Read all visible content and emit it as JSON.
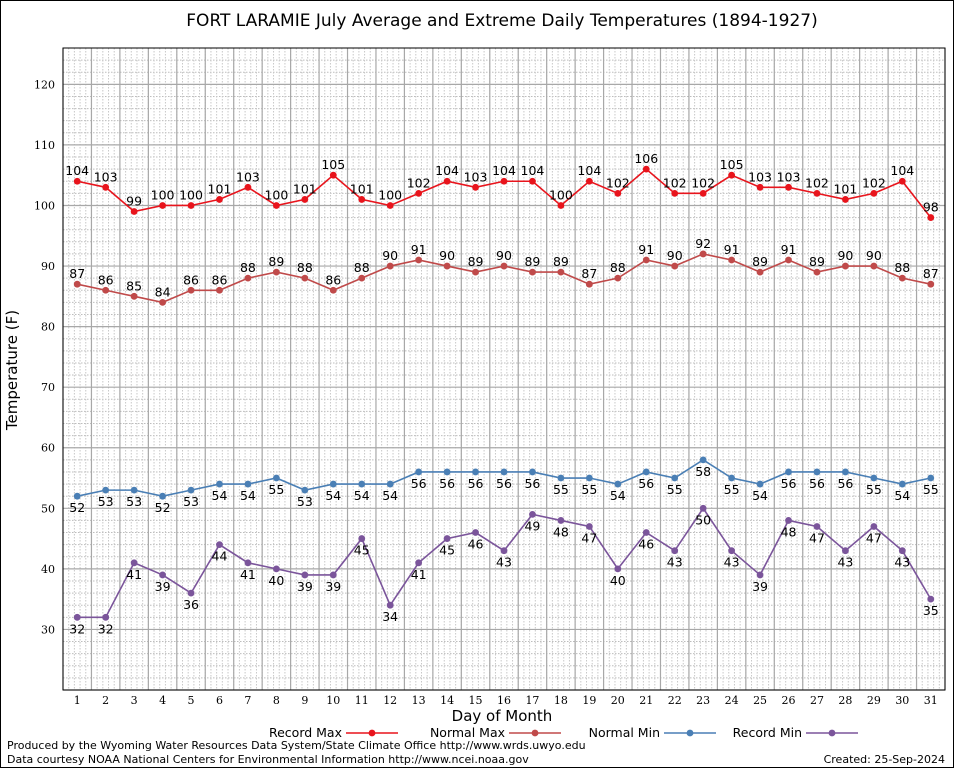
{
  "chart_data": {
    "type": "line",
    "title": "FORT LARAMIE July Average and Extreme Daily Temperatures (1894-1927)",
    "xlabel": "Day of Month",
    "ylabel": "Temperature (F)",
    "x": [
      1,
      2,
      3,
      4,
      5,
      6,
      7,
      8,
      9,
      10,
      11,
      12,
      13,
      14,
      15,
      16,
      17,
      18,
      19,
      20,
      21,
      22,
      23,
      24,
      25,
      26,
      27,
      28,
      29,
      30,
      31
    ],
    "xlim": [
      0.5,
      31.5
    ],
    "ylim": [
      20,
      126
    ],
    "yticks": [
      30,
      40,
      50,
      60,
      70,
      80,
      90,
      100,
      110,
      120
    ],
    "grid": true,
    "legend_position": "bottom",
    "series": [
      {
        "name": "Record Max",
        "color": "#e8141c",
        "label_position": "above",
        "values": [
          104,
          103,
          99,
          100,
          100,
          101,
          103,
          100,
          101,
          105,
          101,
          100,
          102,
          104,
          103,
          104,
          104,
          100,
          104,
          102,
          106,
          102,
          102,
          105,
          103,
          103,
          102,
          101,
          102,
          104,
          98
        ]
      },
      {
        "name": "Normal Max",
        "color": "#c04a4a",
        "label_position": "above",
        "values": [
          87,
          86,
          85,
          84,
          86,
          86,
          88,
          89,
          88,
          86,
          88,
          90,
          91,
          90,
          89,
          90,
          89,
          89,
          87,
          88,
          91,
          90,
          92,
          91,
          89,
          91,
          89,
          90,
          90,
          88,
          87
        ]
      },
      {
        "name": "Normal Min",
        "color": "#4a7fb5",
        "label_position": "below",
        "values": [
          52,
          53,
          53,
          52,
          53,
          54,
          54,
          55,
          53,
          54,
          54,
          54,
          56,
          56,
          56,
          56,
          56,
          55,
          55,
          54,
          56,
          55,
          58,
          55,
          54,
          56,
          56,
          56,
          55,
          54,
          55
        ]
      },
      {
        "name": "Record Min",
        "color": "#7b559b",
        "label_position": "below",
        "values": [
          32,
          32,
          41,
          39,
          36,
          44,
          41,
          40,
          39,
          39,
          45,
          34,
          41,
          45,
          46,
          43,
          49,
          48,
          47,
          40,
          46,
          43,
          50,
          43,
          39,
          48,
          47,
          43,
          47,
          43,
          35
        ]
      }
    ]
  },
  "footer": {
    "produced_by": "Produced by the Wyoming Water Resources Data System/State Climate Office http://www.wrds.uwyo.edu",
    "courtesy": "Data courtesy NOAA National Centers for Environmental Information http://www.ncei.noaa.gov",
    "created": "Created:  25-Sep-2024"
  }
}
